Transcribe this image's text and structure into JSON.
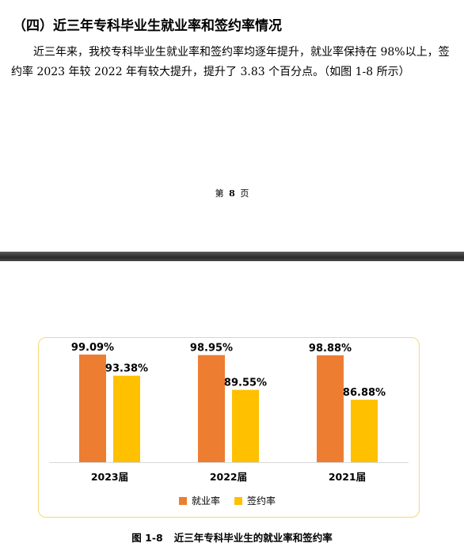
{
  "section_heading": "（四）近三年专科毕业生就业率和签约率情况",
  "paragraph": "近三年来，我校专科毕业生就业率和签约率均逐年提升，就业率保持在 98%以上，签约率 2023 年较 2022 年有较大提升，提升了 3.83 个百分点。（如图 1-8 所示）",
  "page_number": {
    "prefix": "第",
    "number": "8",
    "suffix": "页"
  },
  "figure_caption": {
    "number": "图 1-8",
    "title": "近三年专科毕业生的就业率和签约率"
  },
  "colors": {
    "employment": "#ed7d31",
    "signing": "#ffc000",
    "border": "#f4d87a"
  },
  "chart_data": {
    "type": "bar",
    "categories": [
      "2023届",
      "2022届",
      "2021届"
    ],
    "series": [
      {
        "name": "就业率",
        "values": [
          99.09,
          98.95,
          98.88
        ],
        "labels": [
          "99.09%",
          "98.95%",
          "98.88%"
        ]
      },
      {
        "name": "签约率",
        "values": [
          93.38,
          89.55,
          86.88
        ],
        "labels": [
          "93.38%",
          "89.55%",
          "86.88%"
        ]
      }
    ],
    "ylim": [
      70,
      100
    ],
    "legend": "bottom"
  }
}
